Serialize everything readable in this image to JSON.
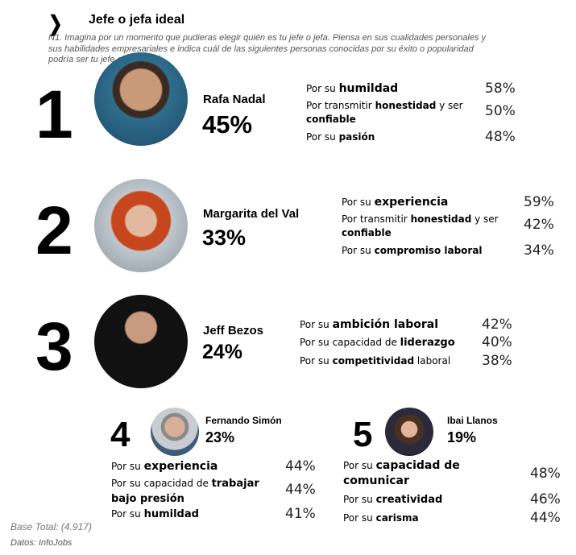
{
  "header": {
    "icon": "chevron-right-icon",
    "title": "Jefe o jefa ideal",
    "question": "N1. Imagina por un momento que pudieras elegir quién es tu jefe o jefa. Piensa en sus cualidades personales y sus habilidades empresariales e indica cuál de las siguientes personas conocidas por su éxito o popularidad podría ser tu jefe o jefa ideal."
  },
  "ranking": [
    {
      "rank": "1",
      "name": "Rafa Nadal",
      "pct": "45%",
      "reasons": [
        {
          "pre": "Por su ",
          "b1": "humildad",
          "mid": "",
          "b2": "",
          "val": "58%"
        },
        {
          "pre": "Por transmitir ",
          "b1": "honestidad",
          "mid": " y ser ",
          "b2": "confiable",
          "val": "50%"
        },
        {
          "pre": "Por su ",
          "b1": "pasión",
          "mid": "",
          "b2": "",
          "val": "48%"
        }
      ]
    },
    {
      "rank": "2",
      "name": "Margarita del Val",
      "pct": "33%",
      "reasons": [
        {
          "pre": "Por su ",
          "b1": "experiencia",
          "mid": "",
          "b2": "",
          "val": "59%"
        },
        {
          "pre": "Por transmitir ",
          "b1": "honestidad",
          "mid": " y ser ",
          "b2": "confiable",
          "val": "42%"
        },
        {
          "pre": "Por su ",
          "b1": "compromiso laboral",
          "mid": "",
          "b2": "",
          "val": "34%"
        }
      ]
    },
    {
      "rank": "3",
      "name": "Jeff Bezos",
      "pct": "24%",
      "reasons": [
        {
          "pre": "Por su ",
          "b1": "ambición laboral",
          "mid": "",
          "b2": "",
          "val": "42%"
        },
        {
          "pre": "Por su capacidad de ",
          "b1": "liderazgo",
          "mid": "",
          "b2": "",
          "val": "40%"
        },
        {
          "pre": "Por su ",
          "b1": "competitividad",
          "mid": " laboral",
          "b2": "",
          "val": "38%"
        }
      ]
    },
    {
      "rank": "4",
      "name": "Fernando Simón",
      "pct": "23%",
      "reasons": [
        {
          "pre": "Por su ",
          "b1": "experiencia",
          "mid": "",
          "b2": "",
          "val": "44%"
        },
        {
          "pre": "Por su capacidad de ",
          "b1": "trabajar bajo presión",
          "mid": "",
          "b2": "",
          "val": "44%"
        },
        {
          "pre": "Por su ",
          "b1": "humildad",
          "mid": "",
          "b2": "",
          "val": "41%"
        }
      ]
    },
    {
      "rank": "5",
      "name": "Ibai Llanos",
      "pct": "19%",
      "reasons": [
        {
          "pre": "Por su ",
          "b1": "capacidad de comunicar",
          "mid": "",
          "b2": "",
          "val": "48%"
        },
        {
          "pre": "Por su ",
          "b1": "creatividad",
          "mid": "",
          "b2": "",
          "val": "46%"
        },
        {
          "pre": "Por su ",
          "b1": "carisma",
          "mid": "",
          "b2": "",
          "val": "44%"
        }
      ]
    }
  ],
  "footer": {
    "base": "Base Total: (4.917)",
    "source": "Datos: InfoJobs"
  }
}
